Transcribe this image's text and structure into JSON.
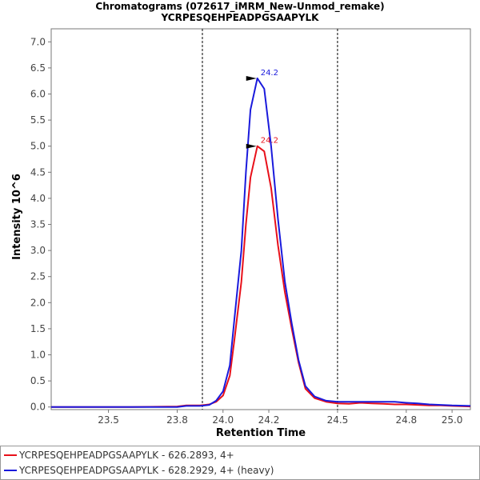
{
  "chart_data": {
    "type": "line",
    "title": "Chromatograms (072617_iMRM_New-Unmod_remake)",
    "subtitle": "YCRPESQEHPEADPGSAAPYLK",
    "xlabel": "Retention Time",
    "ylabel": "Intensity 10^6",
    "xlim": [
      23.25,
      25.08
    ],
    "ylim": [
      -0.05,
      7.25
    ],
    "xticks": [
      23.5,
      23.8,
      24.0,
      24.2,
      24.5,
      24.8,
      25.0
    ],
    "xtick_labels": [
      "23.5",
      "23.8",
      "24.0",
      "24.2",
      "24.5",
      "24.8",
      "25.0"
    ],
    "yticks": [
      0,
      0.5,
      1,
      1.5,
      2,
      2.5,
      3,
      3.5,
      4,
      4.5,
      5,
      5.5,
      6,
      6.5,
      7
    ],
    "ytick_labels": [
      "0.0",
      "0.5",
      "1.0",
      "1.5",
      "2.0",
      "2.5",
      "3.0",
      "3.5",
      "4.0",
      "4.5",
      "5.0",
      "5.5",
      "6.0",
      "6.5",
      "7.0"
    ],
    "integration_bounds": [
      23.91,
      24.5
    ],
    "series": [
      {
        "name": "YCRPESQEHPEADPGSAAPYLK - 626.2893, 4+",
        "color": "#e8101a",
        "peak_label": "24.2",
        "peak": [
          24.15,
          5.0
        ],
        "x": [
          23.25,
          23.4,
          23.6,
          23.8,
          23.84,
          23.9,
          23.94,
          23.97,
          24.0,
          24.03,
          24.05,
          24.08,
          24.1,
          24.12,
          24.15,
          24.18,
          24.21,
          24.24,
          24.27,
          24.3,
          24.33,
          24.36,
          24.4,
          24.45,
          24.5,
          24.55,
          24.6,
          24.65,
          24.7,
          24.75,
          24.8,
          24.85,
          24.9,
          24.95,
          25.0,
          25.08
        ],
        "y": [
          0.0,
          0.0,
          0.0,
          0.01,
          0.03,
          0.03,
          0.05,
          0.1,
          0.22,
          0.6,
          1.3,
          2.4,
          3.5,
          4.4,
          5.0,
          4.9,
          4.2,
          3.1,
          2.2,
          1.5,
          0.85,
          0.35,
          0.17,
          0.1,
          0.07,
          0.06,
          0.08,
          0.07,
          0.06,
          0.05,
          0.05,
          0.04,
          0.03,
          0.03,
          0.02,
          0.01
        ]
      },
      {
        "name": "YCRPESQEHPEADPGSAAPYLK - 628.2929, 4+ (heavy)",
        "color": "#1a1adc",
        "peak_label": "24.2",
        "peak": [
          24.15,
          6.3
        ],
        "x": [
          23.25,
          23.4,
          23.6,
          23.8,
          23.84,
          23.9,
          23.94,
          23.97,
          24.0,
          24.03,
          24.05,
          24.08,
          24.1,
          24.12,
          24.15,
          24.18,
          24.21,
          24.24,
          24.27,
          24.3,
          24.33,
          24.36,
          24.4,
          24.45,
          24.5,
          24.55,
          24.6,
          24.65,
          24.7,
          24.75,
          24.8,
          24.85,
          24.9,
          24.95,
          25.0,
          25.08
        ],
        "y": [
          0.0,
          0.0,
          0.0,
          0.0,
          0.02,
          0.02,
          0.04,
          0.12,
          0.3,
          0.8,
          1.7,
          3.0,
          4.5,
          5.7,
          6.3,
          6.1,
          5.0,
          3.6,
          2.4,
          1.6,
          0.9,
          0.4,
          0.2,
          0.12,
          0.1,
          0.1,
          0.1,
          0.1,
          0.1,
          0.1,
          0.08,
          0.07,
          0.05,
          0.04,
          0.03,
          0.02
        ]
      }
    ]
  }
}
